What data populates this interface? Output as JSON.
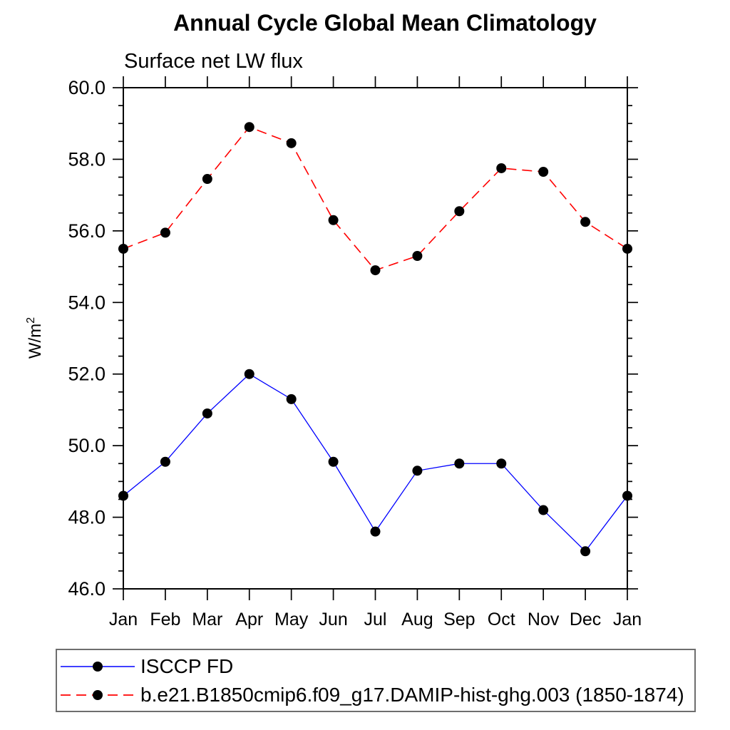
{
  "page": {
    "title": "Annual Cycle Global Mean Climatology",
    "subtitle": "Surface net LW flux"
  },
  "chart_data": {
    "type": "line",
    "title": "Annual Cycle Global Mean Climatology",
    "subtitle": "Surface net LW flux",
    "xlabel": "",
    "ylabel": "W/m²",
    "categories": [
      "Jan",
      "Feb",
      "Mar",
      "Apr",
      "May",
      "Jun",
      "Jul",
      "Aug",
      "Sep",
      "Oct",
      "Nov",
      "Dec",
      "Jan"
    ],
    "ylim": [
      46.0,
      60.0
    ],
    "ytick_major_interval": 2.0,
    "ytick_minor_interval": 0.5,
    "ytick_labels": [
      "46.0",
      "48.0",
      "50.0",
      "52.0",
      "54.0",
      "56.0",
      "58.0",
      "60.0"
    ],
    "grid": false,
    "legend_position": "bottom-left-box",
    "series": [
      {
        "name": "ISCCP FD",
        "color": "#0000ff",
        "line_style": "solid",
        "marker": "filled-circle",
        "marker_color": "#000000",
        "values": [
          48.6,
          49.55,
          50.9,
          52.0,
          51.3,
          49.55,
          47.6,
          49.3,
          49.5,
          49.5,
          48.2,
          47.05,
          48.6
        ]
      },
      {
        "name": "b.e21.B1850cmip6.f09_g17.DAMIP-hist-ghg.003 (1850-1874)",
        "color": "#ff0000",
        "line_style": "dashed",
        "marker": "filled-circle",
        "marker_color": "#000000",
        "values": [
          55.5,
          55.95,
          57.45,
          58.9,
          58.45,
          56.3,
          54.9,
          55.3,
          56.55,
          57.75,
          57.65,
          56.25,
          55.5
        ]
      }
    ],
    "colors": {
      "axis": "#000000",
      "background": "#ffffff",
      "legend_border": "#6e6e6e"
    }
  }
}
